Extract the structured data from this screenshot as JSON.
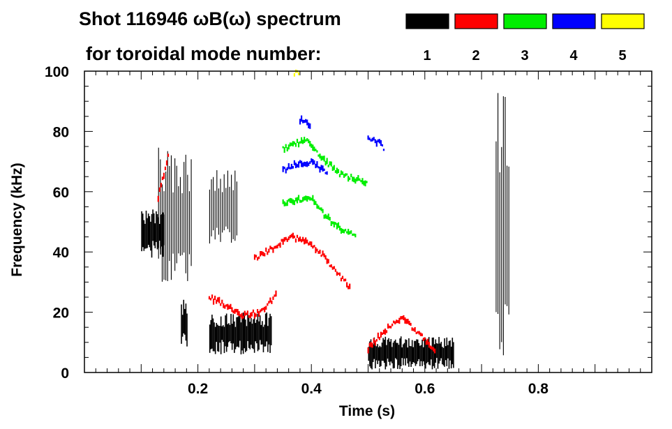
{
  "chart_data": {
    "type": "spectrogram",
    "title": "Shot 116946 ωB(ω) spectrum",
    "subtitle": "for toroidal mode number:",
    "xlabel": "Time (s)",
    "ylabel": "Frequency (kHz)",
    "xlim": [
      0.0,
      1.0
    ],
    "ylim": [
      0,
      100
    ],
    "x_ticks": [
      0.2,
      0.4,
      0.6,
      0.8
    ],
    "x_tick_labels": [
      "0.2",
      "0.4",
      "0.6",
      "0.8"
    ],
    "y_ticks": [
      0,
      20,
      40,
      60,
      80,
      100
    ],
    "y_tick_labels": [
      "0",
      "20",
      "40",
      "60",
      "80",
      "100"
    ],
    "legend": [
      {
        "label": "1",
        "color": "#000000"
      },
      {
        "label": "2",
        "color": "#ff0000"
      },
      {
        "label": "3",
        "color": "#00ee00"
      },
      {
        "label": "4",
        "color": "#0000ff"
      },
      {
        "label": "5",
        "color": "#ffff00"
      }
    ],
    "series": [
      {
        "name": "n=1",
        "color": "#000000",
        "features": [
          {
            "kind": "block",
            "t": [
              0.1,
              0.14
            ],
            "f": [
              38,
              55
            ]
          },
          {
            "kind": "stripes",
            "t": [
              0.13,
              0.19
            ],
            "f": [
              30,
              75
            ]
          },
          {
            "kind": "block",
            "t": [
              0.17,
              0.18
            ],
            "f": [
              8,
              25
            ]
          },
          {
            "kind": "stripes",
            "t": [
              0.22,
              0.27
            ],
            "f": [
              42,
              68
            ]
          },
          {
            "kind": "block",
            "t": [
              0.22,
              0.33
            ],
            "f": [
              6,
              20
            ]
          },
          {
            "kind": "block",
            "t": [
              0.5,
              0.65
            ],
            "f": [
              1,
              12
            ]
          },
          {
            "kind": "stripes",
            "t": [
              0.725,
              0.75
            ],
            "f": [
              5,
              96
            ]
          }
        ]
      },
      {
        "name": "n=2",
        "color": "#ff0000",
        "features": [
          {
            "kind": "curve",
            "points": [
              [
                0.13,
                58
              ],
              [
                0.14,
                66
              ],
              [
                0.15,
                74
              ]
            ]
          },
          {
            "kind": "curve",
            "points": [
              [
                0.22,
                25
              ],
              [
                0.25,
                22
              ],
              [
                0.28,
                19
              ],
              [
                0.31,
                20
              ],
              [
                0.34,
                26
              ]
            ]
          },
          {
            "kind": "curve",
            "points": [
              [
                0.3,
                38
              ],
              [
                0.33,
                41
              ],
              [
                0.36,
                45
              ],
              [
                0.39,
                44
              ],
              [
                0.42,
                39
              ],
              [
                0.45,
                32
              ],
              [
                0.47,
                28
              ]
            ]
          },
          {
            "kind": "curve",
            "points": [
              [
                0.5,
                8
              ],
              [
                0.53,
                14
              ],
              [
                0.56,
                18
              ],
              [
                0.59,
                13
              ],
              [
                0.62,
                6
              ]
            ]
          }
        ]
      },
      {
        "name": "n=3",
        "color": "#00ee00",
        "features": [
          {
            "kind": "curve",
            "points": [
              [
                0.35,
                74
              ],
              [
                0.37,
                76
              ],
              [
                0.39,
                77
              ],
              [
                0.42,
                71
              ],
              [
                0.45,
                66
              ],
              [
                0.48,
                64
              ],
              [
                0.5,
                63
              ]
            ]
          },
          {
            "kind": "curve",
            "points": [
              [
                0.35,
                56
              ],
              [
                0.37,
                57
              ],
              [
                0.4,
                58
              ],
              [
                0.42,
                53
              ],
              [
                0.44,
                49
              ],
              [
                0.46,
                47
              ],
              [
                0.48,
                45
              ]
            ]
          }
        ]
      },
      {
        "name": "n=4",
        "color": "#0000ff",
        "features": [
          {
            "kind": "curve",
            "points": [
              [
                0.35,
                67
              ],
              [
                0.37,
                69
              ],
              [
                0.4,
                70
              ],
              [
                0.43,
                66
              ]
            ]
          },
          {
            "kind": "curve",
            "points": [
              [
                0.38,
                84
              ],
              [
                0.4,
                82
              ]
            ]
          },
          {
            "kind": "curve",
            "points": [
              [
                0.5,
                78
              ],
              [
                0.52,
                76
              ],
              [
                0.53,
                74
              ]
            ]
          }
        ]
      },
      {
        "name": "n=5",
        "color": "#ffff00",
        "features": [
          {
            "kind": "curve",
            "points": [
              [
                0.37,
                99
              ],
              [
                0.38,
                100
              ]
            ]
          }
        ]
      }
    ]
  }
}
